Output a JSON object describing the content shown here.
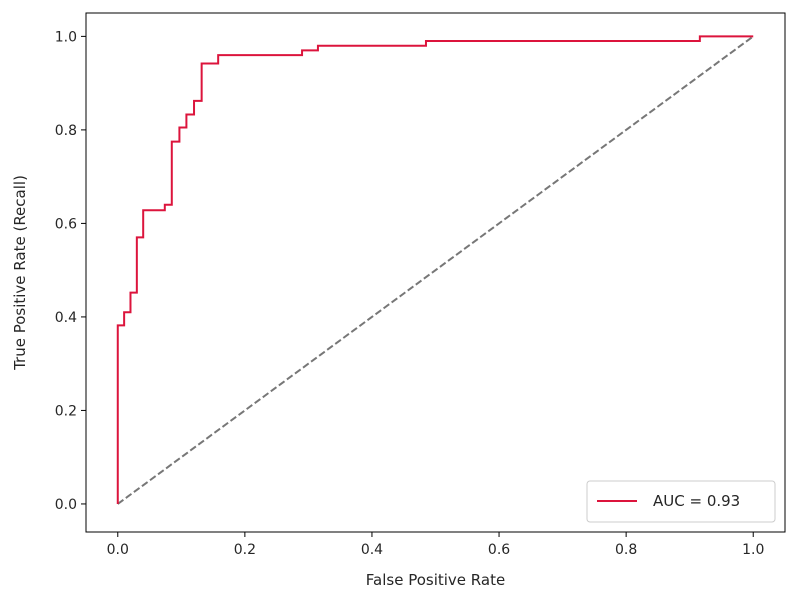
{
  "chart_data": {
    "type": "line",
    "title": "",
    "xlabel": "False Positive Rate",
    "ylabel": "True Positive Rate (Recall)",
    "xlim": [
      -0.05,
      1.05
    ],
    "ylim": [
      -0.06,
      1.05
    ],
    "xticks": [
      0.0,
      0.2,
      0.4,
      0.6,
      0.8,
      1.0
    ],
    "yticks": [
      0.0,
      0.2,
      0.4,
      0.6,
      0.8,
      1.0
    ],
    "xtick_labels": [
      "0.0",
      "0.2",
      "0.4",
      "0.6",
      "0.8",
      "1.0"
    ],
    "ytick_labels": [
      "0.0",
      "0.2",
      "0.4",
      "0.6",
      "0.8",
      "1.0"
    ],
    "grid": false,
    "legend_position": "lower-right",
    "series": [
      {
        "name": "AUC = 0.93",
        "color": "#dc143c",
        "style": "solid",
        "x": [
          0.0,
          0.0,
          0.01,
          0.01,
          0.02,
          0.02,
          0.03,
          0.03,
          0.04,
          0.04,
          0.05,
          0.05,
          0.074,
          0.074,
          0.085,
          0.085,
          0.097,
          0.097,
          0.108,
          0.108,
          0.12,
          0.12,
          0.132,
          0.132,
          0.158,
          0.158,
          0.29,
          0.29,
          0.315,
          0.315,
          0.485,
          0.485,
          0.916,
          0.916,
          1.0
        ],
        "y": [
          0.0,
          0.382,
          0.382,
          0.41,
          0.41,
          0.452,
          0.452,
          0.57,
          0.57,
          0.628,
          0.628,
          0.628,
          0.628,
          0.64,
          0.64,
          0.775,
          0.775,
          0.805,
          0.805,
          0.833,
          0.833,
          0.862,
          0.862,
          0.942,
          0.942,
          0.96,
          0.96,
          0.97,
          0.97,
          0.98,
          0.98,
          0.99,
          0.99,
          1.0,
          1.0
        ]
      },
      {
        "name": "",
        "color": "#777777",
        "style": "dashed",
        "x": [
          0.0,
          1.0
        ],
        "y": [
          0.0,
          1.0
        ]
      }
    ],
    "legend": [
      {
        "label": "AUC = 0.93",
        "color": "#dc143c"
      }
    ]
  }
}
